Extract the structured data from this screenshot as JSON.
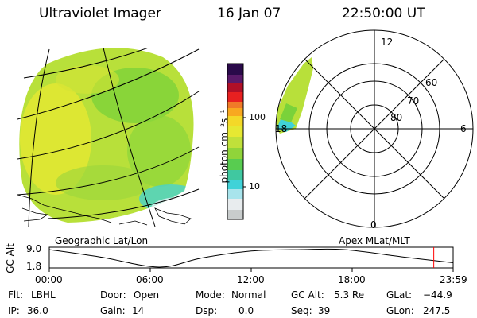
{
  "header": {
    "instrument": "Ultraviolet Imager",
    "date": "16 Jan 07",
    "time": "22:50:00 UT"
  },
  "colorbar": {
    "unit_label": "photon cm⁻²s⁻¹",
    "ticks": [
      "100",
      "10"
    ]
  },
  "polar": {
    "mlt_labels": {
      "top": "12",
      "left": "18",
      "right": "6",
      "bottom": "0"
    },
    "lat_labels": [
      "60",
      "70",
      "80"
    ]
  },
  "projection_labels": {
    "left": "Geographic Lat/Lon",
    "right": "Apex MLat/MLT"
  },
  "orbit_plot": {
    "ylabel": "GC Alt",
    "ytick_top": "9.0",
    "ytick_bottom": "1.8",
    "x_ticks": [
      "00:00",
      "06:00",
      "12:00",
      "18:00",
      "23:59"
    ]
  },
  "chart_data": {
    "type": "line",
    "title": "",
    "xlabel": "",
    "ylabel": "GC Alt",
    "x": [
      0,
      3,
      6.5,
      9,
      12,
      15,
      17.5,
      21,
      23.98
    ],
    "values": [
      9.0,
      6.0,
      1.8,
      5.5,
      8.4,
      9.0,
      9.0,
      6.0,
      3.6
    ],
    "xlim": [
      0,
      23.98
    ],
    "ylim": [
      1.8,
      9.0
    ],
    "marker_x": 22.83
  },
  "status": {
    "flt_label": "Flt:",
    "flt_value": "LBHL",
    "ip_label": "IP:",
    "ip_value": "36.0",
    "door_label": "Door:",
    "door_value": "Open",
    "gain_label": "Gain:",
    "gain_value": "14",
    "mode_label": "Mode:",
    "mode_value": "Normal",
    "dsp_label": "Dsp:",
    "dsp_value": "0.0",
    "gcalt_label": "GC Alt:",
    "gcalt_value": "5.3 Re",
    "seq_label": "Seq:",
    "seq_value": "39",
    "glat_label": "GLat:",
    "glat_value": "−44.9",
    "glon_label": "GLon:",
    "glon_value": "247.5"
  },
  "colors": {
    "emission_main": "#b8e03a",
    "emission_green": "#7ad23a",
    "emission_yellow": "#e6e832",
    "emission_cyan": "#40d2d8",
    "marker": "#ff0000"
  }
}
